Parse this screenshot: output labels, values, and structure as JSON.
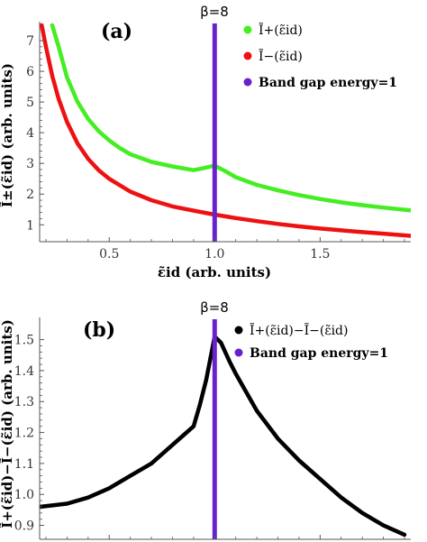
{
  "colors": {
    "green": "#44ee22",
    "red": "#ee1111",
    "purple": "#6622cc",
    "black": "#000000",
    "axis": "#555555"
  },
  "chart_data": [
    {
      "type": "line",
      "panel_label": "(a)",
      "beta_label": "β=8",
      "xlabel": "ε̃id (arb. units)",
      "ylabel": "Ĩ±(ε̃id) (arb. units)",
      "xlim": [
        0.17,
        1.93
      ],
      "ylim": [
        0.45,
        7.5
      ],
      "xticks": [
        0.5,
        1.0,
        1.5
      ],
      "xtick_labels": [
        "0.5",
        "1.0",
        "1.5"
      ],
      "yticks": [
        1,
        2,
        3,
        4,
        5,
        6,
        7
      ],
      "ytick_labels": [
        "1",
        "2",
        "3",
        "4",
        "5",
        "6",
        "7"
      ],
      "grid": false,
      "legend_position": "top-right",
      "vline_x": 1.0,
      "series": [
        {
          "name": "Ĩ+(ε̃id)",
          "color": "green",
          "x": [
            0.23,
            0.26,
            0.3,
            0.35,
            0.4,
            0.45,
            0.5,
            0.55,
            0.6,
            0.7,
            0.8,
            0.9,
            0.95,
            1.0,
            1.05,
            1.1,
            1.2,
            1.3,
            1.4,
            1.5,
            1.6,
            1.7,
            1.8,
            1.93
          ],
          "y": [
            7.5,
            6.8,
            5.8,
            5.0,
            4.45,
            4.05,
            3.75,
            3.5,
            3.3,
            3.05,
            2.9,
            2.78,
            2.85,
            2.93,
            2.75,
            2.55,
            2.3,
            2.12,
            1.97,
            1.84,
            1.73,
            1.64,
            1.56,
            1.47
          ]
        },
        {
          "name": "Ĩ−(ε̃id)",
          "color": "red",
          "x": [
            0.18,
            0.2,
            0.23,
            0.26,
            0.3,
            0.35,
            0.4,
            0.45,
            0.5,
            0.6,
            0.7,
            0.8,
            0.9,
            1.0,
            1.1,
            1.2,
            1.3,
            1.4,
            1.5,
            1.6,
            1.7,
            1.8,
            1.93
          ],
          "y": [
            7.5,
            6.8,
            5.85,
            5.1,
            4.35,
            3.65,
            3.15,
            2.78,
            2.5,
            2.08,
            1.8,
            1.6,
            1.46,
            1.33,
            1.22,
            1.12,
            1.03,
            0.95,
            0.88,
            0.82,
            0.76,
            0.71,
            0.64
          ]
        }
      ],
      "legend": [
        {
          "label": "Ĩ+(ε̃id)",
          "color": "green"
        },
        {
          "label": "Ĩ−(ε̃id)",
          "color": "red"
        },
        {
          "label": "Band gap energy=1",
          "color": "purple"
        }
      ]
    },
    {
      "type": "line",
      "panel_label": "(b)",
      "beta_label": "β=8",
      "xlabel": "",
      "ylabel": "Ĩ+(ε̃id)−Ĩ−(ε̃id) (arb. units)",
      "xlim": [
        0.17,
        1.93
      ],
      "ylim": [
        0.855,
        1.56
      ],
      "yticks": [
        0.9,
        1.0,
        1.1,
        1.2,
        1.3,
        1.4,
        1.5
      ],
      "ytick_labels": [
        "0.9",
        "1.0",
        "1.1",
        "1.2",
        "1.3",
        "1.4",
        "1.5"
      ],
      "grid": false,
      "legend_position": "top-right",
      "vline_x": 1.0,
      "series": [
        {
          "name": "Ĩ+(ε̃id)−Ĩ−(ε̃id)",
          "color": "black",
          "x": [
            0.17,
            0.3,
            0.4,
            0.5,
            0.6,
            0.7,
            0.8,
            0.85,
            0.9,
            0.93,
            0.96,
            0.98,
            1.0,
            1.03,
            1.07,
            1.1,
            1.2,
            1.3,
            1.4,
            1.5,
            1.6,
            1.7,
            1.8,
            1.9
          ],
          "y": [
            0.96,
            0.97,
            0.99,
            1.02,
            1.06,
            1.1,
            1.16,
            1.19,
            1.22,
            1.29,
            1.37,
            1.44,
            1.51,
            1.49,
            1.43,
            1.39,
            1.27,
            1.18,
            1.11,
            1.05,
            0.99,
            0.94,
            0.9,
            0.87
          ]
        }
      ],
      "legend": [
        {
          "label": "Ĩ+(ε̃id)−Ĩ−(ε̃id)",
          "color": "black"
        },
        {
          "label": "Band gap energy=1",
          "color": "purple"
        }
      ]
    }
  ]
}
